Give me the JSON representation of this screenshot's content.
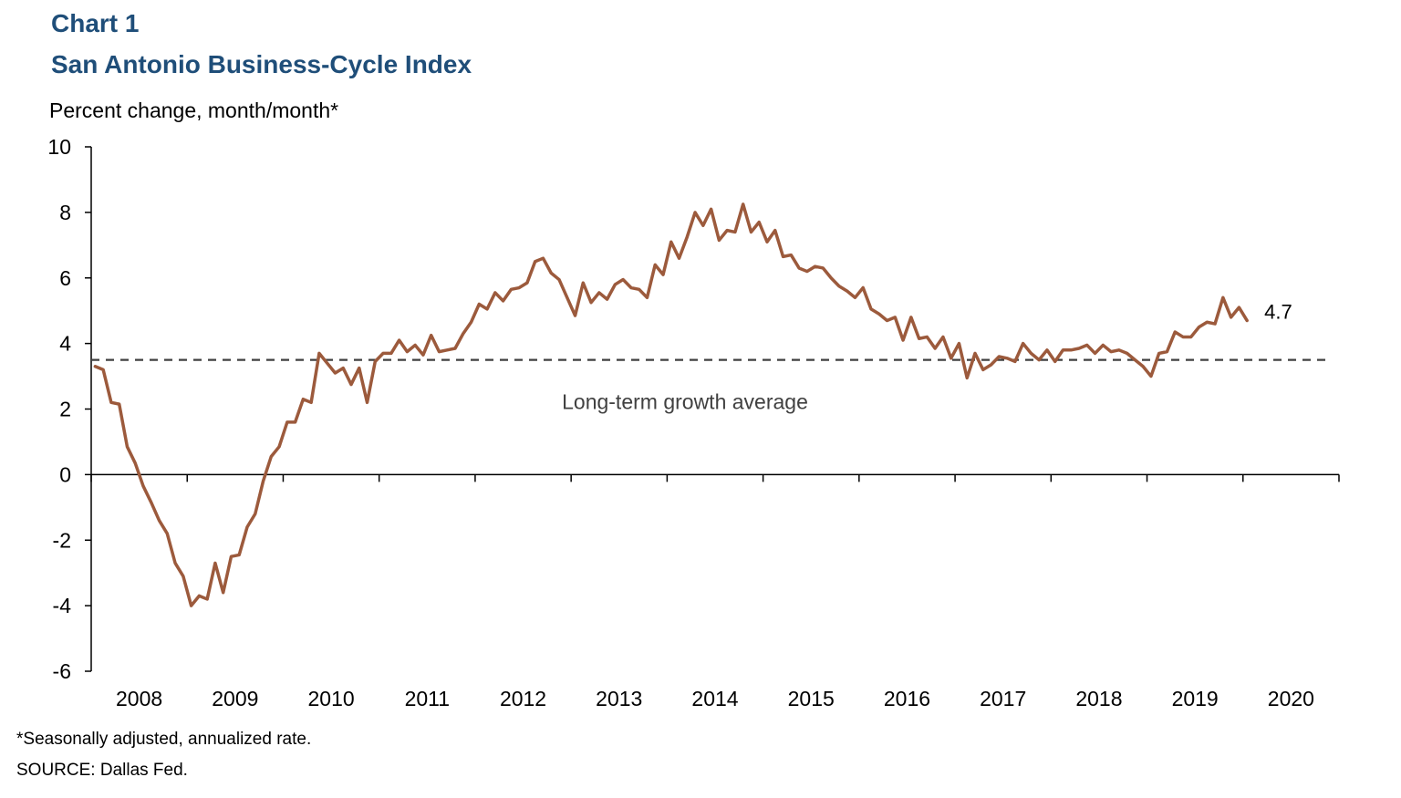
{
  "header": {
    "chart_number": "Chart 1",
    "title": "San Antonio Business-Cycle Index"
  },
  "footer": {
    "footnote": "*Seasonally adjusted, annualized rate.",
    "source": "SOURCE: Dallas Fed."
  },
  "colors": {
    "series": "#9c5a3c",
    "reference_line": "#404040",
    "title": "#1f4e79"
  },
  "chart_data": {
    "type": "line",
    "title": "San Antonio Business-Cycle Index",
    "ylabel": "Percent change, month/month*",
    "xlabel": "",
    "ylim": [
      -6,
      10
    ],
    "yticks": [
      "10",
      "8",
      "6",
      "4",
      "2",
      "0",
      "-2",
      "-4",
      "-6"
    ],
    "xtick_labels": [
      "2008",
      "2009",
      "2010",
      "2011",
      "2012",
      "2013",
      "2014",
      "2015",
      "2016",
      "2017",
      "2018",
      "2019",
      "2020"
    ],
    "grid": false,
    "reference_line": {
      "value": 3.5,
      "label": "Long-term growth average",
      "style": "dashed"
    },
    "end_label": "4.7",
    "series": [
      {
        "start": "2008-01",
        "frequency": "monthly",
        "values": [
          3.3,
          3.2,
          2.2,
          2.15,
          0.85,
          0.35,
          -0.35,
          -0.85,
          -1.4,
          -1.8,
          -2.7,
          -3.1,
          -4.0,
          -3.7,
          -3.8,
          -2.7,
          -3.6,
          -2.5,
          -2.45,
          -1.6,
          -1.2,
          -0.2,
          0.55,
          0.85,
          1.6,
          1.6,
          2.3,
          2.2,
          3.7,
          3.4,
          3.1,
          3.25,
          2.75,
          3.25,
          2.2,
          3.45,
          3.7,
          3.7,
          4.1,
          3.75,
          3.95,
          3.65,
          4.25,
          3.75,
          3.8,
          3.85,
          4.3,
          4.65,
          5.2,
          5.05,
          5.55,
          5.3,
          5.65,
          5.7,
          5.85,
          6.5,
          6.6,
          6.15,
          5.95,
          5.4,
          4.85,
          5.85,
          5.25,
          5.55,
          5.35,
          5.8,
          5.95,
          5.7,
          5.65,
          5.4,
          6.4,
          6.1,
          7.1,
          6.6,
          7.25,
          8.0,
          7.6,
          8.1,
          7.15,
          7.45,
          7.4,
          8.25,
          7.4,
          7.7,
          7.1,
          7.45,
          6.65,
          6.7,
          6.3,
          6.2,
          6.35,
          6.3,
          6.0,
          5.75,
          5.6,
          5.4,
          5.7,
          5.05,
          4.9,
          4.7,
          4.8,
          4.1,
          4.8,
          4.15,
          4.2,
          3.85,
          4.2,
          3.55,
          4.0,
          2.95,
          3.7,
          3.2,
          3.35,
          3.6,
          3.55,
          3.45,
          4.0,
          3.7,
          3.5,
          3.8,
          3.45,
          3.8,
          3.8,
          3.85,
          3.95,
          3.7,
          3.95,
          3.75,
          3.8,
          3.7,
          3.5,
          3.3,
          3.0,
          3.7,
          3.75,
          4.35,
          4.2,
          4.2,
          4.5,
          4.65,
          4.6,
          5.4,
          4.8,
          5.1,
          4.7
        ]
      }
    ]
  }
}
